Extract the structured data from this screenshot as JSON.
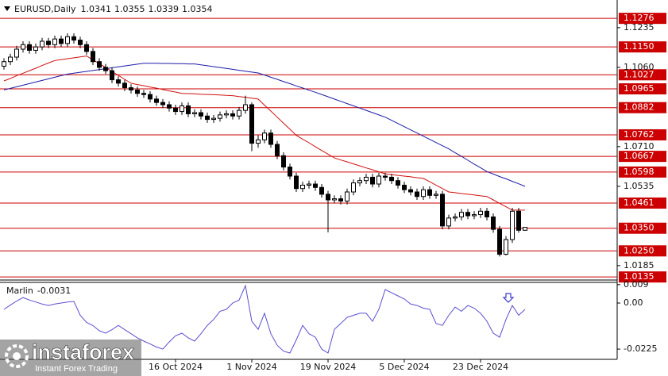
{
  "chart_data": [
    {
      "type": "candlestick",
      "title": "EURUSD,Daily",
      "header_values": [
        1.0341,
        1.0355,
        1.0339,
        1.0354
      ],
      "categories": [
        null,
        null,
        null,
        null,
        null,
        null,
        null,
        null,
        null,
        null,
        null,
        null,
        null,
        null,
        null,
        null,
        null,
        null,
        null,
        null,
        null,
        null,
        null,
        null,
        null,
        null,
        null,
        "16 Oct 2024",
        null,
        null,
        null,
        null,
        null,
        null,
        null,
        null,
        null,
        null,
        null,
        "1 Nov 2024",
        null,
        null,
        null,
        null,
        null,
        null,
        null,
        null,
        null,
        null,
        null,
        "19 Nov 2024",
        null,
        null,
        null,
        null,
        null,
        null,
        null,
        null,
        null,
        null,
        null,
        "5 Dec 2024",
        null,
        null,
        null,
        null,
        null,
        null,
        null,
        null,
        null,
        null,
        null,
        "23 Dec 2024",
        null,
        null,
        null,
        null,
        null,
        null,
        null
      ],
      "open": [
        1.1065,
        1.1085,
        1.1105,
        1.114,
        1.116,
        1.1135,
        1.115,
        1.1175,
        1.116,
        1.1185,
        1.1165,
        1.1195,
        1.118,
        1.116,
        1.113,
        1.1085,
        1.106,
        1.1045,
        1.1005,
        1.099,
        1.097,
        1.096,
        1.0945,
        1.094,
        1.092,
        1.0905,
        1.0895,
        1.088,
        1.0865,
        1.089,
        1.0855,
        1.086,
        1.0845,
        1.083,
        1.0835,
        1.085,
        1.0855,
        1.0845,
        1.087,
        1.0895,
        1.0725,
        1.074,
        1.077,
        1.072,
        1.067,
        1.062,
        1.058,
        1.0525,
        1.054,
        1.0545,
        1.053,
        1.05,
        1.0475,
        1.048,
        1.047,
        1.051,
        1.055,
        1.056,
        1.0575,
        1.0545,
        1.058,
        1.0575,
        1.056,
        1.054,
        1.052,
        1.051,
        1.049,
        1.052,
        1.0495,
        1.05,
        1.036,
        1.0395,
        1.04,
        1.042,
        1.0405,
        1.041,
        1.0425,
        1.04,
        1.0345,
        1.0235,
        1.03,
        1.0425,
        1.0341
      ],
      "high": [
        1.11,
        1.112,
        1.1155,
        1.1175,
        1.1175,
        1.1165,
        1.119,
        1.119,
        1.12,
        1.12,
        1.121,
        1.121,
        1.1195,
        1.1175,
        1.1145,
        1.11,
        1.1075,
        1.106,
        1.102,
        1.1005,
        1.0985,
        1.0975,
        1.096,
        1.0955,
        1.0935,
        1.092,
        1.091,
        1.0895,
        1.0905,
        1.0905,
        1.0875,
        1.0875,
        1.086,
        1.085,
        1.0865,
        1.087,
        1.087,
        1.0885,
        1.0935,
        1.0905,
        1.076,
        1.0785,
        1.0785,
        1.0735,
        1.0685,
        1.0635,
        1.0595,
        1.0555,
        1.056,
        1.056,
        1.0545,
        1.0515,
        1.0495,
        1.0495,
        1.0525,
        1.0565,
        1.0575,
        1.059,
        1.059,
        1.0595,
        1.0595,
        1.059,
        1.0575,
        1.0555,
        1.0535,
        1.0525,
        1.0535,
        1.0535,
        1.0515,
        1.0515,
        1.041,
        1.0415,
        1.0435,
        1.0435,
        1.0425,
        1.044,
        1.044,
        1.0415,
        1.036,
        1.0315,
        1.044,
        1.044,
        1.0355
      ],
      "low": [
        1.105,
        1.107,
        1.109,
        1.1125,
        1.112,
        1.112,
        1.1135,
        1.1145,
        1.1145,
        1.115,
        1.115,
        1.1165,
        1.1145,
        1.1115,
        1.107,
        1.1045,
        1.103,
        1.099,
        1.0975,
        1.0955,
        1.0945,
        1.093,
        1.0925,
        1.0905,
        1.089,
        1.088,
        1.0865,
        1.085,
        1.085,
        1.084,
        1.084,
        1.083,
        1.0815,
        1.0815,
        1.082,
        1.0835,
        1.083,
        1.083,
        1.0855,
        1.069,
        1.0705,
        1.0725,
        1.0705,
        1.0655,
        1.0605,
        1.0565,
        1.051,
        1.051,
        1.0525,
        1.0515,
        1.0485,
        1.0332,
        1.046,
        1.0455,
        1.0455,
        1.0495,
        1.0535,
        1.0545,
        1.053,
        1.053,
        1.056,
        1.0545,
        1.0525,
        1.0505,
        1.0495,
        1.0475,
        1.0475,
        1.048,
        1.048,
        1.0345,
        1.0345,
        1.038,
        1.0385,
        1.039,
        1.039,
        1.0395,
        1.0385,
        1.033,
        1.0225,
        1.023,
        1.0285,
        1.033,
        1.0339
      ],
      "close": [
        1.1085,
        1.1105,
        1.114,
        1.116,
        1.1135,
        1.115,
        1.1175,
        1.116,
        1.1185,
        1.1165,
        1.1195,
        1.118,
        1.116,
        1.113,
        1.1085,
        1.106,
        1.1045,
        1.1005,
        1.099,
        1.097,
        1.096,
        1.0945,
        1.094,
        1.092,
        1.0905,
        1.0895,
        1.088,
        1.0865,
        1.089,
        1.0855,
        1.086,
        1.0845,
        1.083,
        1.0835,
        1.085,
        1.0855,
        1.0845,
        1.087,
        1.0895,
        1.0725,
        1.074,
        1.077,
        1.072,
        1.067,
        1.062,
        1.058,
        1.0525,
        1.054,
        1.0545,
        1.053,
        1.05,
        1.0475,
        1.048,
        1.047,
        1.051,
        1.055,
        1.056,
        1.0575,
        1.0545,
        1.058,
        1.0575,
        1.056,
        1.054,
        1.052,
        1.051,
        1.049,
        1.052,
        1.0495,
        1.05,
        1.036,
        1.0395,
        1.04,
        1.042,
        1.0405,
        1.041,
        1.0425,
        1.04,
        1.0345,
        1.0235,
        1.03,
        1.0425,
        1.0341,
        1.0354
      ],
      "up_color": "#ffffff",
      "down_color": "#000000",
      "wick_color": "#000000",
      "lines": [
        {
          "color": "#d01010",
          "values": [
            1.1,
            1.1011,
            1.1023,
            1.1034,
            1.1045,
            1.1056,
            1.1068,
            1.1079,
            1.109,
            1.1094,
            1.1098,
            1.1102,
            1.1106,
            1.111,
            1.1093,
            1.1076,
            1.1059,
            1.1042,
            1.1024,
            1.1007,
            1.099,
            1.0984,
            1.0979,
            1.0973,
            1.0968,
            1.0962,
            1.0956,
            1.0951,
            1.0945,
            1.0944,
            1.0943,
            1.0941,
            1.094,
            1.0939,
            1.0938,
            1.0936,
            1.0935,
            1.0931,
            1.0928,
            1.0924,
            1.092,
            1.0893,
            1.0867,
            1.084,
            1.0813,
            1.0787,
            1.076,
            1.0743,
            1.0727,
            1.071,
            1.0693,
            1.0677,
            1.066,
            1.0651,
            1.0643,
            1.0634,
            1.0625,
            1.0616,
            1.0608,
            1.0599,
            1.059,
            1.0587,
            1.0583,
            1.058,
            1.0577,
            1.0573,
            1.057,
            1.0555,
            1.054,
            1.0525,
            1.051,
            1.0507,
            1.0503,
            1.05,
            1.0497,
            1.0493,
            1.049,
            1.0475,
            1.046,
            1.0445,
            1.043,
            1.043,
            1.043
          ]
        },
        {
          "color": "#1c1ca8",
          "values": [
            1.096,
            1.0967,
            1.0974,
            1.0981,
            1.0988,
            1.0995,
            1.1002,
            1.1009,
            1.1016,
            1.1023,
            1.103,
            1.1034,
            1.1038,
            1.1042,
            1.1046,
            1.105,
            1.1054,
            1.1058,
            1.1062,
            1.1066,
            1.107,
            1.1074,
            1.1078,
            1.1078,
            1.1078,
            1.1077,
            1.1077,
            1.1076,
            1.1076,
            1.1075,
            1.1075,
            1.1071,
            1.1067,
            1.1063,
            1.1059,
            1.1055,
            1.1051,
            1.1047,
            1.1043,
            1.1039,
            1.1035,
            1.1026,
            1.1016,
            1.1007,
            1.0997,
            1.0988,
            1.0978,
            1.0969,
            1.0959,
            1.095,
            1.094,
            1.093,
            1.092,
            1.091,
            1.09,
            1.089,
            1.088,
            1.087,
            1.086,
            1.085,
            1.084,
            1.0826,
            1.0812,
            1.0798,
            1.0784,
            1.077,
            1.0756,
            1.0742,
            1.0728,
            1.0714,
            1.07,
            1.0683,
            1.0667,
            1.065,
            1.0633,
            1.0617,
            1.06,
            1.0589,
            1.0578,
            1.0568,
            1.0557,
            1.0546,
            1.0535
          ]
        }
      ],
      "levels": {
        "color": "#cc0000",
        "values": [
          1.1276,
          {
            "value": 1.115,
            "label": "1.1150"
          },
          1.1027,
          1.0965,
          1.0882,
          1.0762,
          1.0667,
          1.0598,
          1.0461,
          {
            "value": 1.035,
            "label": "1.0350"
          },
          {
            "value": 1.025,
            "label": "1.0250"
          },
          1.0135
        ]
      },
      "ylim": [
        1.0125,
        1.135
      ],
      "yticks": [
        1.1235,
        {
          "value": 1.106,
          "label": "1.1060"
        },
        {
          "value": 1.071,
          "label": "1.0710"
        },
        1.0535,
        1.0185
      ]
    },
    {
      "type": "line",
      "title": "Marlin",
      "current_value": -0.0031,
      "color": "#5a4fcf",
      "values": [
        -0.0031,
        -0.001,
        0.001,
        0.0027,
        0.0015,
        0.0005,
        -0.0005,
        -0.0012,
        -0.0005,
        0.0,
        0.0005,
        0.0008,
        -0.006,
        -0.0095,
        -0.011,
        -0.0135,
        -0.0147,
        -0.013,
        -0.0109,
        -0.013,
        -0.015,
        -0.017,
        -0.0186,
        -0.02,
        -0.0215,
        -0.0225,
        -0.019,
        -0.016,
        -0.0147,
        -0.017,
        -0.0186,
        -0.015,
        -0.0109,
        -0.008,
        -0.004,
        -0.0031,
        0.0,
        0.0015,
        0.0085,
        -0.0089,
        -0.0128,
        -0.005,
        -0.015,
        -0.0206,
        -0.0235,
        -0.0244,
        -0.018,
        -0.0109,
        -0.015,
        -0.0167,
        -0.0225,
        -0.0244,
        -0.0128,
        -0.01,
        -0.007,
        -0.006,
        -0.005,
        -0.005,
        -0.0089,
        -0.003,
        0.0066,
        0.005,
        0.0035,
        0.002,
        -0.0005,
        -0.0012,
        -0.0025,
        -0.0031,
        -0.01,
        -0.0109,
        -0.006,
        -0.002,
        -0.004,
        -0.0012,
        -0.0025,
        -0.005,
        -0.0089,
        -0.0147,
        -0.0167,
        -0.008,
        -0.0012,
        -0.006,
        -0.0031
      ],
      "ylim": [
        -0.0275,
        0.0097
      ],
      "yticks": [
        0.009,
        {
          "value": 0,
          "label": "0.00"
        },
        -0.0225
      ]
    }
  ],
  "logo": {
    "name": "instaforex",
    "tagline": "Instant Forex Trading"
  }
}
